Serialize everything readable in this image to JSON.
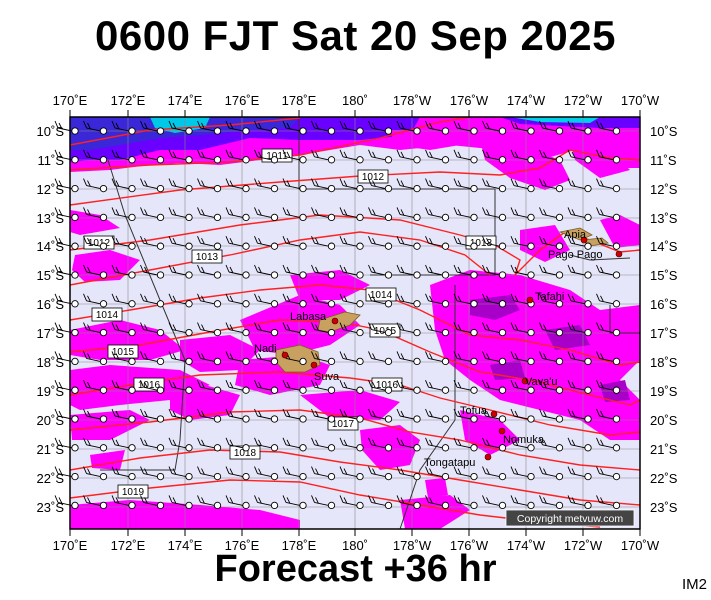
{
  "header": {
    "title": "0600 FJT Sat 20 Sep 2025"
  },
  "footer": {
    "forecast": "Forecast +36 hr",
    "model": "IM2"
  },
  "map": {
    "lon_labels": [
      "170˚E",
      "172˚E",
      "174˚E",
      "176˚E",
      "178˚E",
      "180˚",
      "178˚W",
      "176˚W",
      "174˚W",
      "172˚W",
      "170˚W"
    ],
    "lat_labels": [
      "10˚S",
      "11˚S",
      "12˚S",
      "13˚S",
      "14˚S",
      "15˚S",
      "16˚S",
      "17˚S",
      "18˚S",
      "19˚S",
      "20˚S",
      "21˚S",
      "22˚S",
      "23˚S"
    ],
    "isobars": [
      "1011",
      "1012",
      "1012",
      "1013",
      "1013",
      "1014",
      "1014",
      "1015",
      "1015",
      "1016",
      "1016",
      "1017",
      "1018",
      "1019"
    ],
    "places": [
      "Apia",
      "Pago Pago",
      "Tafahi",
      "Labasa",
      "Nadi",
      "Suva",
      "Vava'u",
      "Tofua",
      "Nomuka",
      "Tongatapu"
    ],
    "copyright": "Copyright metvuw.com",
    "colors": {
      "ocean": "#e6e6fa",
      "rain": "#ff00ff",
      "isobar": "#ff0000",
      "heavy_rain": "#6a00ff"
    }
  }
}
